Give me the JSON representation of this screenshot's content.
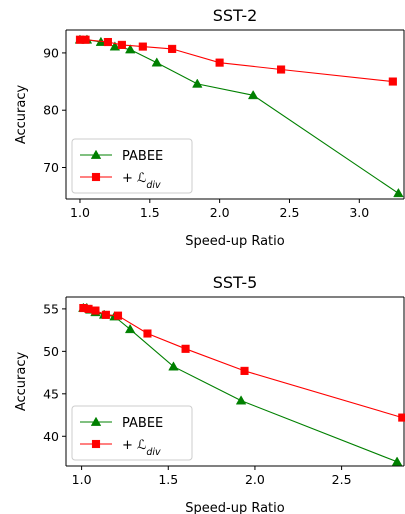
{
  "chart_data": [
    {
      "type": "line",
      "title": "SST-2",
      "xlabel": "Speed-up Ratio",
      "ylabel": "Accuracy",
      "xlim": [
        0.9,
        3.32
      ],
      "ylim": [
        64.5,
        94
      ],
      "xticks": [
        1.0,
        1.5,
        2.0,
        2.5,
        3.0
      ],
      "xtick_labels": [
        "1.0",
        "1.5",
        "2.0",
        "2.5",
        "3.0"
      ],
      "yticks": [
        70,
        80,
        90
      ],
      "ytick_labels": [
        "70",
        "80",
        "90"
      ],
      "legend_position": "lower-left",
      "series": [
        {
          "name": "PABEE",
          "color": "#008000",
          "marker": "triangle",
          "points": [
            [
              1.0,
              92.3
            ],
            [
              1.05,
              92.3
            ],
            [
              1.15,
              91.9
            ],
            [
              1.25,
              91.1
            ],
            [
              1.36,
              90.6
            ],
            [
              1.55,
              88.3
            ],
            [
              1.84,
              84.6
            ],
            [
              2.24,
              82.6
            ],
            [
              3.28,
              65.5
            ]
          ]
        },
        {
          "name": "+ ℒ",
          "name_sub": "div",
          "color": "#ff0000",
          "marker": "square",
          "points": [
            [
              1.0,
              92.3
            ],
            [
              1.04,
              92.3
            ],
            [
              1.2,
              91.9
            ],
            [
              1.3,
              91.4
            ],
            [
              1.45,
              91.1
            ],
            [
              1.66,
              90.7
            ],
            [
              2.0,
              88.3
            ],
            [
              2.44,
              87.1
            ],
            [
              3.24,
              85.0
            ]
          ]
        }
      ]
    },
    {
      "type": "line",
      "title": "SST-5",
      "xlabel": "Speed-up Ratio",
      "ylabel": "Accuracy",
      "xlim": [
        0.91,
        2.86
      ],
      "ylim": [
        36.5,
        56.4
      ],
      "xticks": [
        1.0,
        1.5,
        2.0,
        2.5
      ],
      "xtick_labels": [
        "1.0",
        "1.5",
        "2.0",
        "2.5"
      ],
      "yticks": [
        40,
        45,
        50,
        55
      ],
      "ytick_labels": [
        "40",
        "45",
        "50",
        "55"
      ],
      "legend_position": "lower-left",
      "series": [
        {
          "name": "PABEE",
          "color": "#008000",
          "marker": "triangle",
          "points": [
            [
              1.01,
              55.1
            ],
            [
              1.03,
              55.1
            ],
            [
              1.05,
              54.9
            ],
            [
              1.08,
              54.6
            ],
            [
              1.13,
              54.3
            ],
            [
              1.19,
              54.1
            ],
            [
              1.28,
              52.6
            ],
            [
              1.53,
              48.2
            ],
            [
              1.92,
              44.2
            ],
            [
              2.82,
              37.0
            ]
          ]
        },
        {
          "name": "+ ℒ",
          "name_sub": "div",
          "color": "#ff0000",
          "marker": "square",
          "points": [
            [
              1.01,
              55.1
            ],
            [
              1.04,
              55.0
            ],
            [
              1.08,
              54.8
            ],
            [
              1.14,
              54.3
            ],
            [
              1.21,
              54.2
            ],
            [
              1.38,
              52.1
            ],
            [
              1.6,
              50.3
            ],
            [
              1.94,
              47.7
            ],
            [
              2.85,
              42.2
            ]
          ]
        }
      ]
    }
  ]
}
